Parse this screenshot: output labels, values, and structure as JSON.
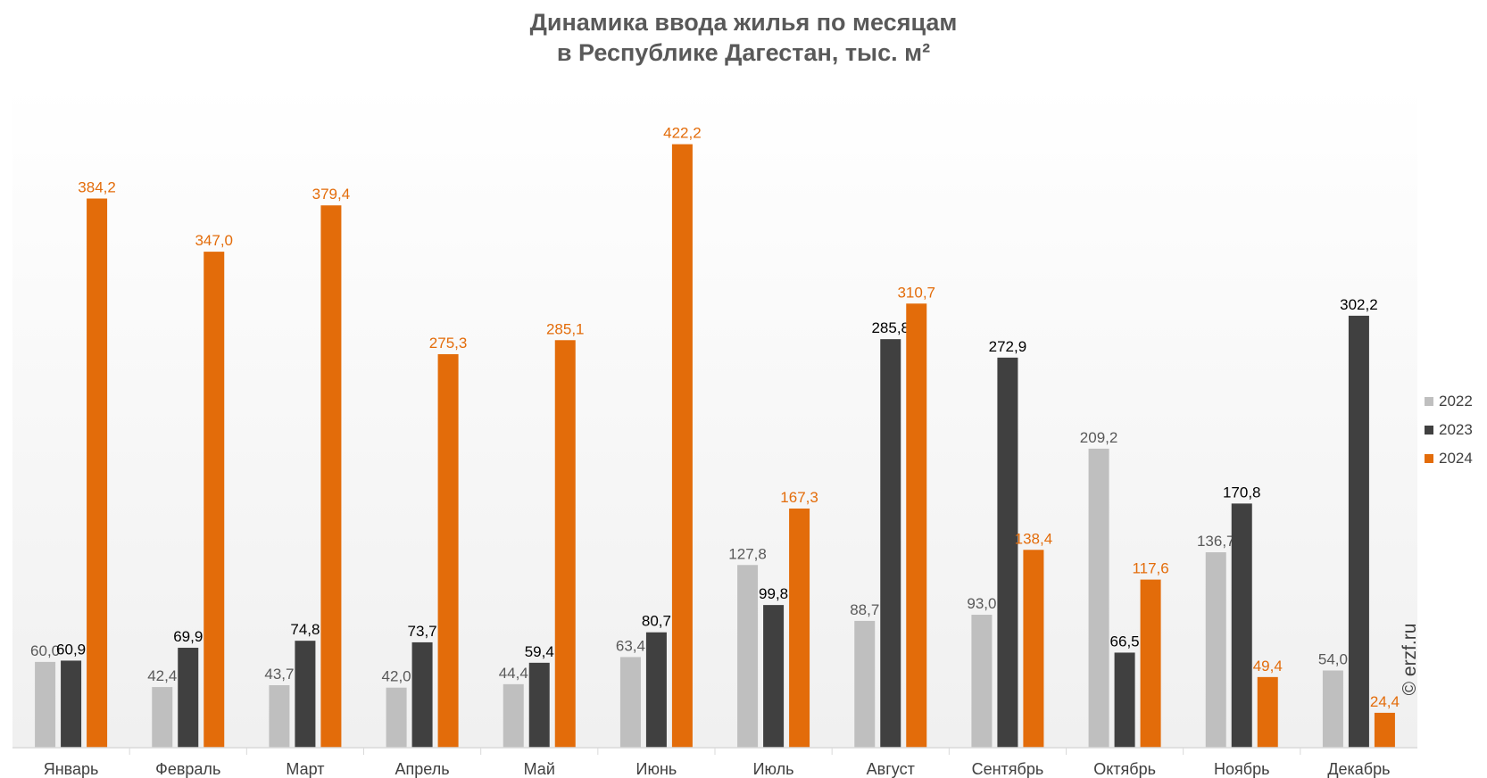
{
  "chart_data": {
    "type": "bar",
    "title_line1": "Динамика ввода жилья по месяцам",
    "title_line2": "в Республике Дагестан, тыс. м²",
    "categories": [
      "Январь",
      "Февраль",
      "Март",
      "Апрель",
      "Май",
      "Июнь",
      "Июль",
      "Август",
      "Сентябрь",
      "Октябрь",
      "Ноябрь",
      "Декабрь"
    ],
    "series": [
      {
        "name": "2022",
        "color": "#bfbfbf",
        "label_color": "#595959",
        "values": [
          60.0,
          42.4,
          43.7,
          42.0,
          44.4,
          63.4,
          127.8,
          88.7,
          93.0,
          209.2,
          136.7,
          54.0
        ],
        "labels": [
          "60,0",
          "42,4",
          "43,7",
          "42,0",
          "44,4",
          "63,4",
          "127,8",
          "88,7",
          "93,0",
          "209,2",
          "136,7",
          "54,0"
        ]
      },
      {
        "name": "2023",
        "color": "#404040",
        "label_color": "#000000",
        "values": [
          60.9,
          69.9,
          74.8,
          73.7,
          59.4,
          80.7,
          99.8,
          285.8,
          272.9,
          66.5,
          170.8,
          302.2
        ],
        "labels": [
          "60,9",
          "69,9",
          "74,8",
          "73,7",
          "59,4",
          "80,7",
          "99,8",
          "285,8",
          "272,9",
          "66,5",
          "170,8",
          "302,2"
        ]
      },
      {
        "name": "2024",
        "color": "#e36c0a",
        "label_color": "#e36c0a",
        "values": [
          384.2,
          347.0,
          379.4,
          275.3,
          285.1,
          422.2,
          167.3,
          310.7,
          138.4,
          117.6,
          49.4,
          24.4
        ],
        "labels": [
          "384,2",
          "347,0",
          "379,4",
          "275,3",
          "285,1",
          "422,2",
          "167,3",
          "310,7",
          "138,4",
          "117,6",
          "49,4",
          "24,4"
        ]
      }
    ],
    "ylim": [
      0,
      440
    ],
    "grid": false,
    "legend_position": "right"
  },
  "watermark": "© erzf.ru"
}
